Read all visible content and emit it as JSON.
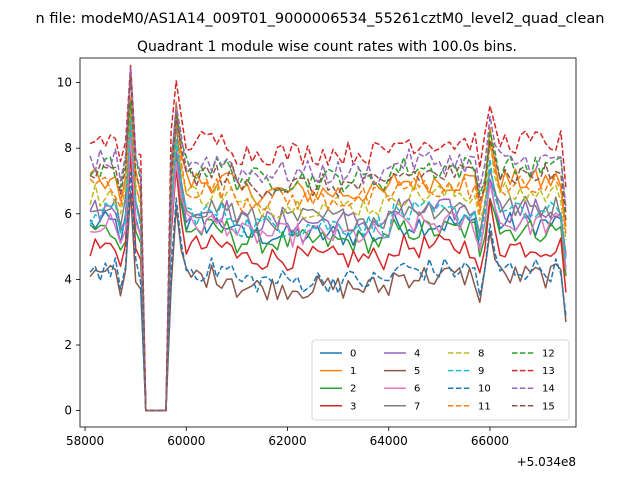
{
  "chart_data": {
    "type": "line",
    "suptitle": "n file: modeM0/AS1A14_009T01_9000006534_55261cztM0_level2_quad_clean",
    "title": "Quadrant 1 module wise count rates with 100.0s bins.",
    "xlabel": "",
    "ylabel": "",
    "x_offset_label": "+5.034e8",
    "xlim": [
      57900,
      67700
    ],
    "ylim": [
      -0.5,
      10.75
    ],
    "x_ticks": [
      58000,
      60000,
      62000,
      64000,
      66000
    ],
    "x_tick_labels": [
      "58000",
      "60000",
      "62000",
      "64000",
      "66000"
    ],
    "y_ticks": [
      0,
      2,
      4,
      6,
      8,
      10
    ],
    "y_tick_labels": [
      "0",
      "2",
      "4",
      "6",
      "8",
      "10"
    ],
    "x_start": 58100,
    "x_step": 100,
    "gap": {
      "start": 59200,
      "end": 59600
    },
    "spike1": {
      "center": 58900
    },
    "spike2": {
      "at": 59800
    },
    "spike3": {
      "center": 66000
    },
    "x_end": 67500,
    "grid": false,
    "legend": {
      "position": "bottom-right",
      "columns": 4
    },
    "series": [
      {
        "name": "0",
        "base": 5.7,
        "color": "#1f77b4",
        "dash": false
      },
      {
        "name": "1",
        "base": 7.0,
        "color": "#ff7f0e",
        "dash": false
      },
      {
        "name": "2",
        "base": 5.5,
        "color": "#2ca02c",
        "dash": false
      },
      {
        "name": "3",
        "base": 5.0,
        "color": "#d62728",
        "dash": false
      },
      {
        "name": "4",
        "base": 6.1,
        "color": "#9467bd",
        "dash": false
      },
      {
        "name": "5",
        "base": 4.1,
        "color": "#8c564b",
        "dash": false
      },
      {
        "name": "6",
        "base": 5.7,
        "color": "#e377c2",
        "dash": false
      },
      {
        "name": "7",
        "base": 6.2,
        "color": "#7f7f7f",
        "dash": false
      },
      {
        "name": "8",
        "base": 6.6,
        "color": "#bcbd22",
        "dash": true
      },
      {
        "name": "9",
        "base": 6.0,
        "color": "#17becf",
        "dash": true
      },
      {
        "name": "10",
        "base": 4.3,
        "color": "#1f77b4",
        "dash": true
      },
      {
        "name": "11",
        "base": 6.8,
        "color": "#ff7f0e",
        "dash": true
      },
      {
        "name": "12",
        "base": 7.4,
        "color": "#2ca02c",
        "dash": true
      },
      {
        "name": "13",
        "base": 8.2,
        "color": "#d62728",
        "dash": true
      },
      {
        "name": "14",
        "base": 7.6,
        "color": "#9467bd",
        "dash": true
      },
      {
        "name": "15",
        "base": 7.2,
        "color": "#8c564b",
        "dash": true
      }
    ]
  }
}
